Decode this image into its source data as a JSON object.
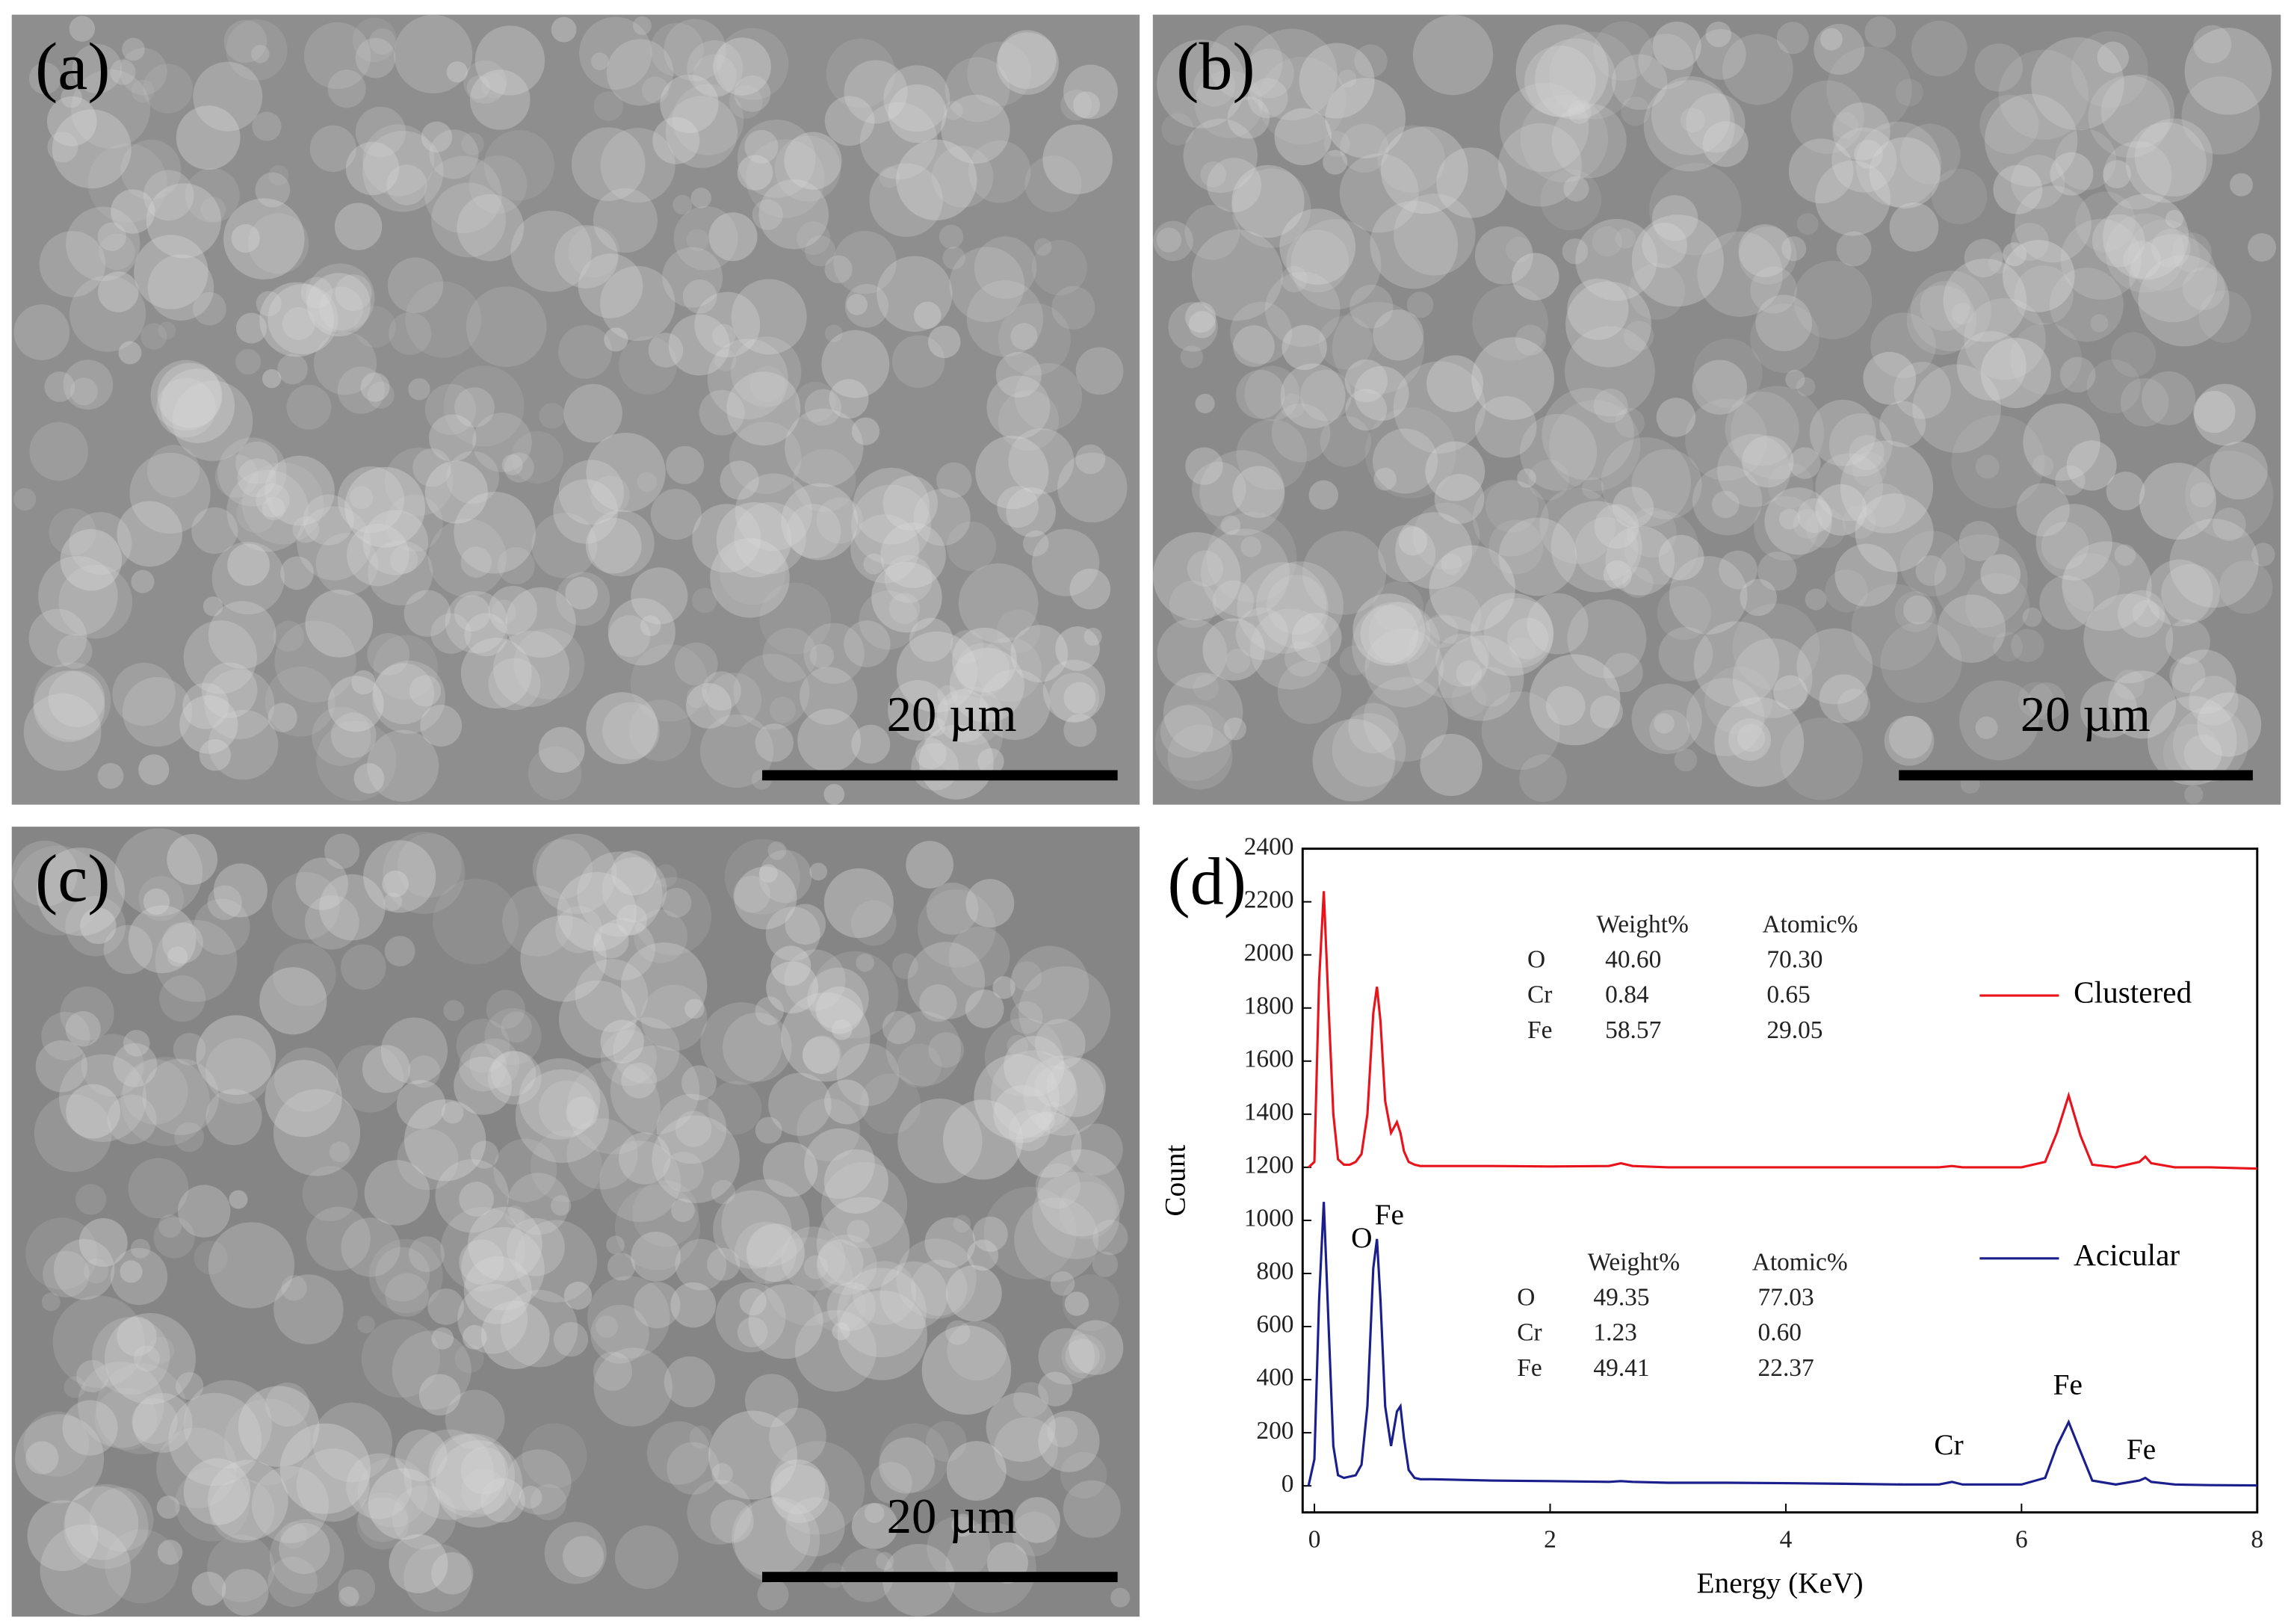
{
  "panels": [
    {
      "label": "(a)",
      "scale_bar": "20 µm"
    },
    {
      "label": "(b)",
      "scale_bar": "20 µm"
    },
    {
      "label": "(c)",
      "scale_bar": "20 µm"
    }
  ],
  "chart_data": {
    "type": "line",
    "label": "(d)",
    "x_label": "Energy (KeV)",
    "y_label": "Count",
    "xlim": [
      -0.1,
      8
    ],
    "ylim": [
      -100,
      2400
    ],
    "xticks": [
      0,
      2,
      4,
      6,
      8
    ],
    "yticks": [
      0,
      200,
      400,
      600,
      800,
      1000,
      1200,
      1400,
      1600,
      1800,
      2000,
      2200,
      2400
    ],
    "x": [
      -0.05,
      0,
      0.04,
      0.08,
      0.12,
      0.16,
      0.2,
      0.25,
      0.3,
      0.35,
      0.4,
      0.45,
      0.5,
      0.53,
      0.56,
      0.6,
      0.65,
      0.7,
      0.73,
      0.76,
      0.8,
      0.85,
      0.9,
      1,
      1.5,
      2,
      2.5,
      2.6,
      2.7,
      3,
      3.5,
      4,
      4.5,
      5,
      5.3,
      5.41,
      5.5,
      6,
      6.2,
      6.3,
      6.4,
      6.5,
      6.6,
      6.8,
      7,
      7.05,
      7.1,
      7.3,
      7.6,
      8
    ],
    "series": [
      {
        "name": "Clustered",
        "color": "#e8131b",
        "values": [
          1200,
          1220,
          1900,
          2240,
          1800,
          1400,
          1230,
          1210,
          1210,
          1220,
          1250,
          1400,
          1780,
          1880,
          1750,
          1450,
          1330,
          1370,
          1330,
          1260,
          1220,
          1210,
          1205,
          1205,
          1205,
          1203,
          1205,
          1215,
          1205,
          1200,
          1200,
          1200,
          1200,
          1200,
          1200,
          1205,
          1200,
          1200,
          1220,
          1330,
          1470,
          1320,
          1210,
          1200,
          1220,
          1240,
          1215,
          1200,
          1200,
          1195
        ]
      },
      {
        "name": "Acicular",
        "color": "#1a1f8c",
        "values": [
          0,
          100,
          700,
          1070,
          600,
          150,
          40,
          30,
          35,
          40,
          80,
          300,
          820,
          930,
          700,
          300,
          150,
          280,
          300,
          180,
          60,
          30,
          25,
          25,
          20,
          18,
          15,
          18,
          15,
          12,
          12,
          10,
          8,
          5,
          5,
          15,
          5,
          5,
          30,
          150,
          240,
          130,
          20,
          5,
          20,
          30,
          15,
          5,
          3,
          2
        ]
      }
    ],
    "tables": [
      {
        "header": [
          "Weight%",
          "Atomic%"
        ],
        "rows": [
          [
            "O",
            "40.60",
            "70.30"
          ],
          [
            "Cr",
            "0.84",
            "0.65"
          ],
          [
            "Fe",
            "58.57",
            "29.05"
          ]
        ]
      },
      {
        "header": [
          "Weight%",
          "Atomic%"
        ],
        "rows": [
          [
            "O",
            "49.35",
            "77.03"
          ],
          [
            "Cr",
            "1.23",
            "0.60"
          ],
          [
            "Fe",
            "49.41",
            "22.37"
          ]
        ]
      }
    ],
    "peak_labels": [
      "O",
      "Fe",
      "Cr",
      "Fe",
      "Fe"
    ]
  }
}
